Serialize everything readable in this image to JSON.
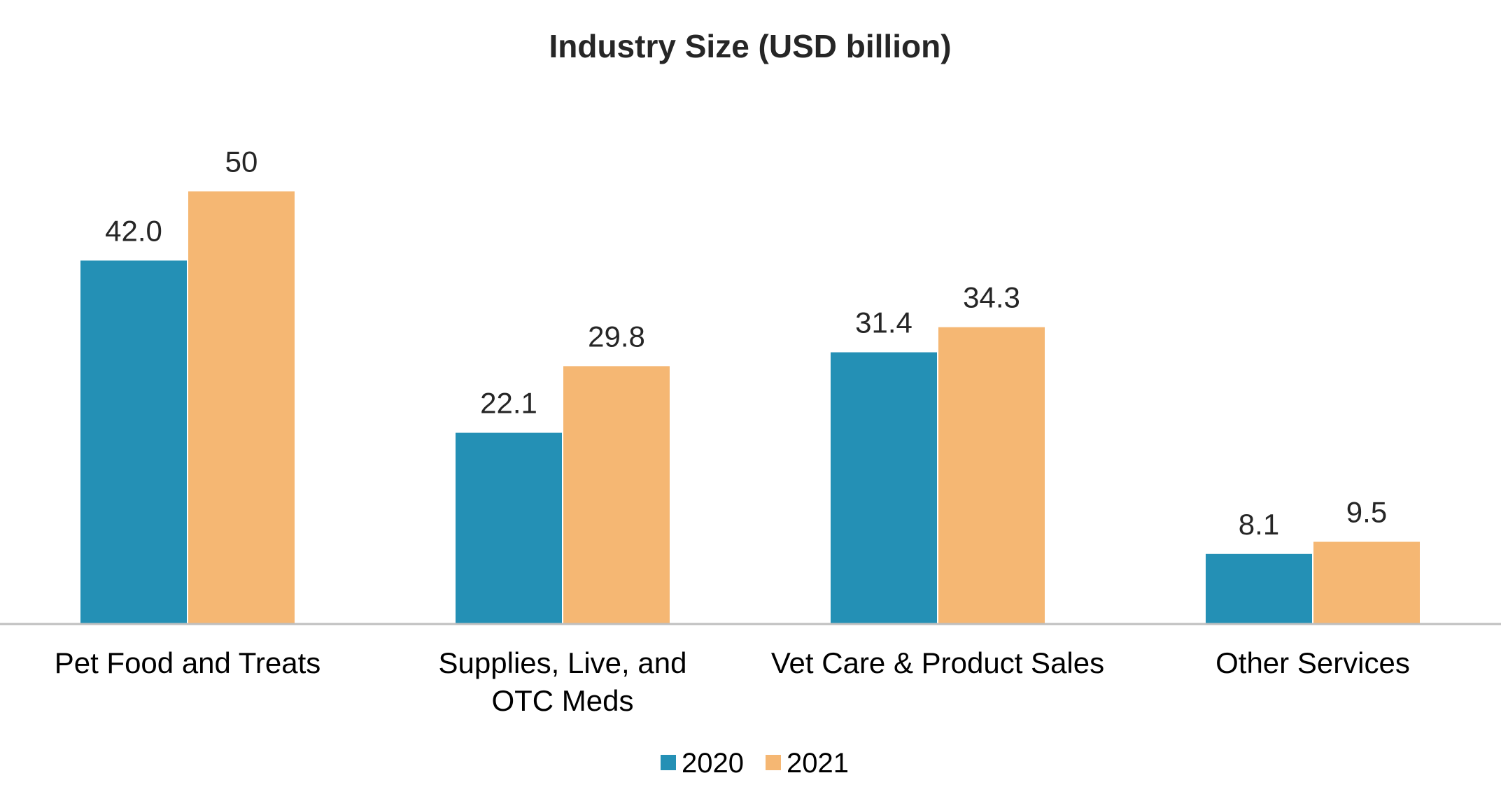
{
  "chart_data": {
    "type": "bar",
    "title": "Industry Size (USD billion)",
    "xlabel": "",
    "ylabel": "",
    "categories": [
      [
        "Pet Food and Treats"
      ],
      [
        "Supplies, Live, and",
        "OTC Meds"
      ],
      [
        "Vet Care & Product Sales"
      ],
      [
        "Other Services"
      ]
    ],
    "series": [
      {
        "name": "2020",
        "color": "#2490b5",
        "values": [
          42.0,
          22.1,
          31.4,
          8.1
        ],
        "labels": [
          "42.0",
          "22.1",
          "31.4",
          "8.1"
        ]
      },
      {
        "name": "2021",
        "color": "#f5b773",
        "values": [
          50,
          29.8,
          34.3,
          9.5
        ],
        "labels": [
          "50",
          "29.8",
          "34.3",
          "9.5"
        ]
      }
    ],
    "ylim": [
      0,
      60
    ],
    "grid": false,
    "legend_position": "bottom"
  }
}
